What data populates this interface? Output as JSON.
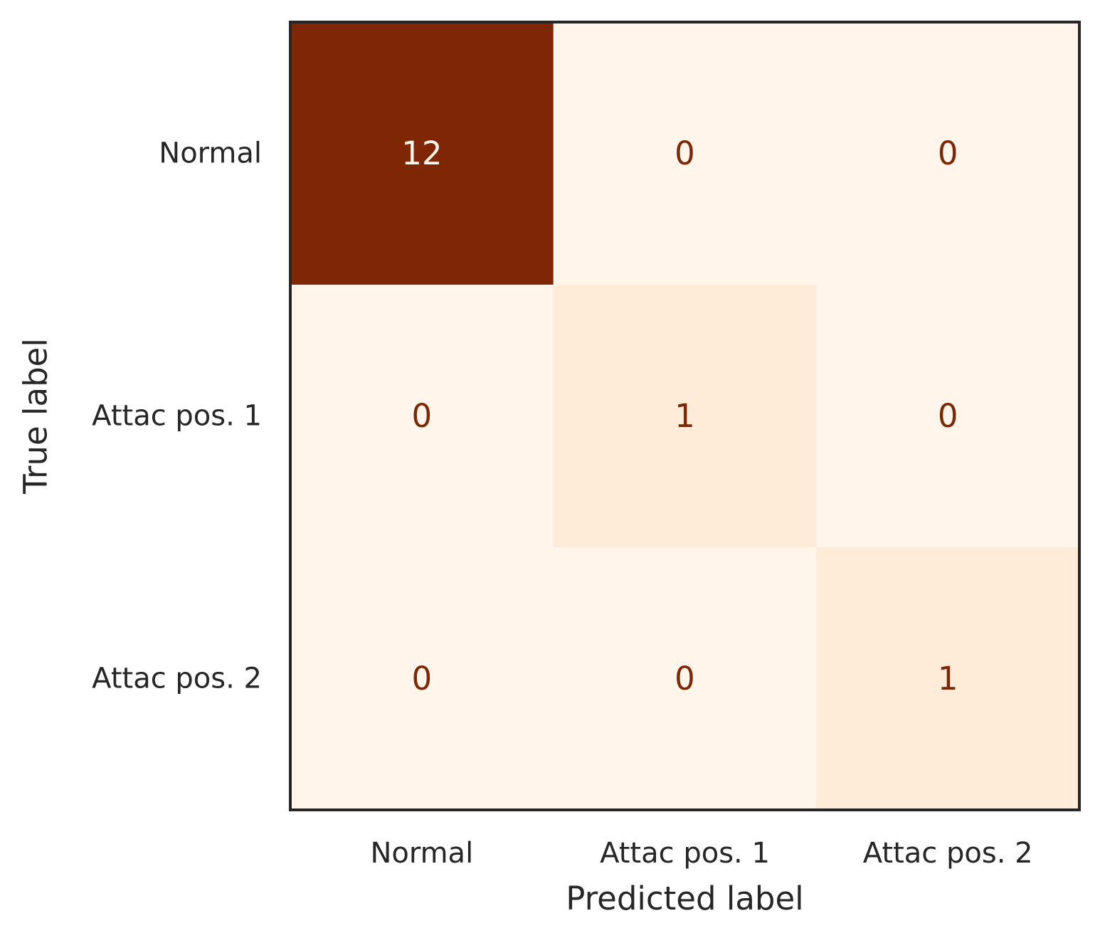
{
  "chart_data": {
    "type": "heatmap",
    "title": "",
    "xlabel": "Predicted label",
    "ylabel": "True label",
    "x_categories": [
      "Normal",
      "Attac pos. 1",
      "Attac pos. 2"
    ],
    "y_categories": [
      "Normal",
      "Attac pos. 1",
      "Attac pos. 2"
    ],
    "values": [
      [
        12,
        0,
        0
      ],
      [
        0,
        1,
        0
      ],
      [
        0,
        0,
        1
      ]
    ],
    "value_range": [
      0,
      12
    ],
    "colormap": "Oranges",
    "colors": {
      "low": "#fff5eb",
      "high": "#7f2704",
      "text_on_dark": "#fff5eb",
      "text_on_light": "#7f2704",
      "frame": "#262626"
    },
    "colorbar": false,
    "grid": false
  }
}
